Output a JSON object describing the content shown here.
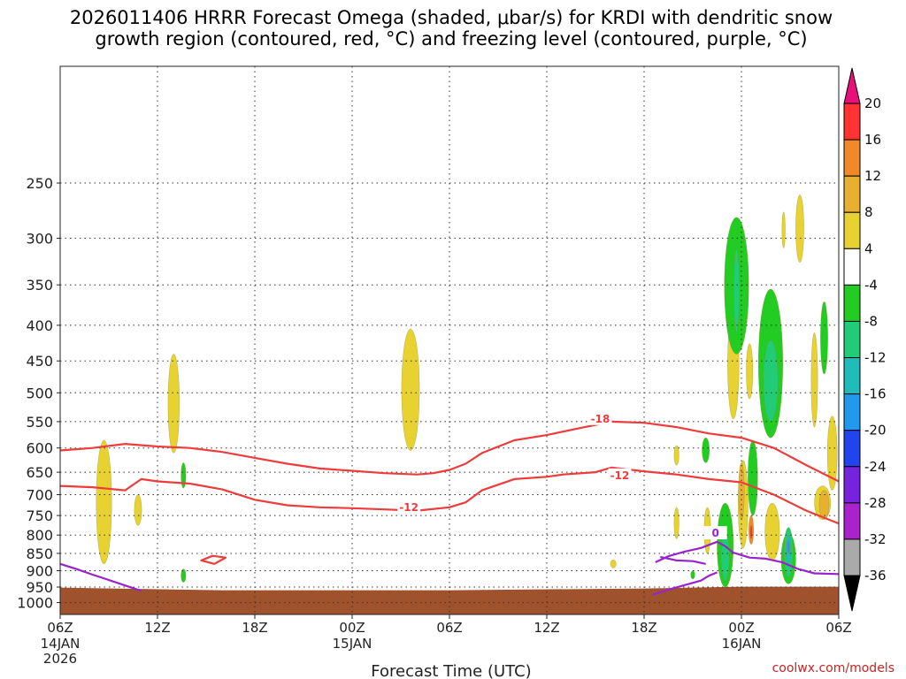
{
  "chart_data": {
    "type": "contour",
    "title_line1": "2026011406 HRRR Forecast Omega (shaded, μbar/s) for KRDI with dendritic snow",
    "title_line2": "growth region (contoured, red, °C) and freezing level (contoured, purple, °C)",
    "xlabel": "Forecast Time (UTC)",
    "credit": "coolwx.com/models",
    "x_range_hours": [
      0,
      48
    ],
    "y_range_mb": [
      170,
      1040
    ],
    "y_scale": "log",
    "grid": "dotted",
    "x_ticks": [
      {
        "hour": 0,
        "label": "06Z",
        "date": "14JAN",
        "year": "2026"
      },
      {
        "hour": 6,
        "label": "12Z",
        "date": "",
        "year": ""
      },
      {
        "hour": 12,
        "label": "18Z",
        "date": "",
        "year": ""
      },
      {
        "hour": 18,
        "label": "00Z",
        "date": "15JAN",
        "year": ""
      },
      {
        "hour": 24,
        "label": "06Z",
        "date": "",
        "year": ""
      },
      {
        "hour": 30,
        "label": "12Z",
        "date": "",
        "year": ""
      },
      {
        "hour": 36,
        "label": "18Z",
        "date": "",
        "year": ""
      },
      {
        "hour": 42,
        "label": "00Z",
        "date": "16JAN",
        "year": ""
      },
      {
        "hour": 48,
        "label": "06Z",
        "date": "",
        "year": ""
      }
    ],
    "y_ticks": [
      250,
      300,
      350,
      400,
      450,
      500,
      550,
      600,
      650,
      700,
      750,
      800,
      850,
      900,
      950,
      1000
    ],
    "ground_mb": 960,
    "colorbar": [
      {
        "label": "20",
        "color": "#ff3333"
      },
      {
        "label": "16",
        "color": "#f08a28"
      },
      {
        "label": "12",
        "color": "#e8b030"
      },
      {
        "label": "8",
        "color": "#e8d232"
      },
      {
        "label": "4",
        "color": "#ffffff"
      },
      {
        "label": "-4",
        "color": "#22cc22"
      },
      {
        "label": "-8",
        "color": "#22cc77"
      },
      {
        "label": "-12",
        "color": "#22bbbb"
      },
      {
        "label": "-16",
        "color": "#2299ee"
      },
      {
        "label": "-20",
        "color": "#2244ee"
      },
      {
        "label": "-24",
        "color": "#7722dd"
      },
      {
        "label": "-28",
        "color": "#aa22cc"
      },
      {
        "label": "-32",
        "color": "#aaaaaa"
      },
      {
        "label": "-36",
        "color": "#000000"
      }
    ],
    "colorbar_top_color": "#e8107a",
    "contour_lines": [
      {
        "label": "-18",
        "color": "#ee3b3b",
        "label_at": {
          "h": 33.3,
          "p": 545
        },
        "points": [
          [
            0,
            605
          ],
          [
            2,
            600
          ],
          [
            4,
            592
          ],
          [
            6,
            597
          ],
          [
            8,
            600
          ],
          [
            10,
            608
          ],
          [
            12,
            620
          ],
          [
            14,
            632
          ],
          [
            16,
            642
          ],
          [
            18,
            647
          ],
          [
            20,
            652
          ],
          [
            22,
            655
          ],
          [
            23,
            652
          ],
          [
            24,
            645
          ],
          [
            25,
            632
          ],
          [
            26,
            610
          ],
          [
            28,
            585
          ],
          [
            30,
            575
          ],
          [
            32,
            562
          ],
          [
            34,
            550
          ],
          [
            36,
            552
          ],
          [
            38,
            560
          ],
          [
            40,
            572
          ],
          [
            42,
            580
          ],
          [
            44,
            600
          ],
          [
            46,
            635
          ],
          [
            48,
            670
          ]
        ]
      },
      {
        "label": "-12",
        "color": "#ee3b3b",
        "label_at": {
          "h": 21.5,
          "p": 730
        },
        "points": [
          [
            0,
            680
          ],
          [
            2,
            683
          ],
          [
            4,
            690
          ],
          [
            5,
            665
          ],
          [
            6,
            670
          ],
          [
            8,
            675
          ],
          [
            10,
            688
          ],
          [
            12,
            712
          ],
          [
            14,
            725
          ],
          [
            16,
            730
          ],
          [
            18,
            732
          ],
          [
            20,
            735
          ],
          [
            22,
            738
          ],
          [
            24,
            730
          ],
          [
            25,
            718
          ],
          [
            26,
            690
          ],
          [
            28,
            665
          ],
          [
            30,
            660
          ],
          [
            31,
            655
          ],
          [
            33,
            650
          ],
          [
            34,
            640
          ],
          [
            36,
            648
          ],
          [
            38,
            655
          ],
          [
            40,
            665
          ],
          [
            42,
            672
          ],
          [
            44,
            700
          ],
          [
            46,
            738
          ],
          [
            48,
            770
          ]
        ]
      },
      {
        "label": "-12",
        "color": "#ee3b3b",
        "label_at": {
          "h": 34.5,
          "p": 657
        },
        "points": []
      },
      {
        "label": "",
        "color": "#ee3b3b",
        "closed": true,
        "points": [
          [
            8.7,
            870
          ],
          [
            9.4,
            857
          ],
          [
            10.2,
            862
          ],
          [
            9.5,
            880
          ],
          [
            8.7,
            870
          ]
        ]
      },
      {
        "label": "0",
        "color": "#9922cc",
        "label_at": {
          "h": 40.4,
          "p": 795
        },
        "points": [
          [
            36.7,
            875
          ],
          [
            37.5,
            858
          ],
          [
            38.5,
            845
          ],
          [
            39.5,
            835
          ],
          [
            40.5,
            818
          ],
          [
            41,
            830
          ],
          [
            41.5,
            848
          ],
          [
            42.5,
            862
          ],
          [
            43.5,
            865
          ],
          [
            44.5,
            875
          ],
          [
            45.5,
            895
          ],
          [
            46.5,
            908
          ],
          [
            48,
            910
          ]
        ]
      },
      {
        "label": "",
        "color": "#9922cc",
        "points": [
          [
            37,
            860
          ],
          [
            38,
            870
          ],
          [
            39,
            872
          ],
          [
            39.8,
            880
          ]
        ]
      },
      {
        "label": "",
        "color": "#9922cc",
        "points": [
          [
            36.5,
            975
          ],
          [
            37.5,
            958
          ],
          [
            38.5,
            944
          ],
          [
            39.5,
            930
          ],
          [
            40,
            915
          ],
          [
            40.5,
            905
          ]
        ]
      },
      {
        "label": "",
        "color": "#9922cc",
        "points": [
          [
            0,
            880
          ],
          [
            1,
            895
          ],
          [
            2,
            912
          ],
          [
            3,
            928
          ],
          [
            4,
            945
          ],
          [
            5,
            962
          ]
        ]
      }
    ],
    "shaded_regions": [
      {
        "value": "4 to 8",
        "color": "#e8d232",
        "h": 2.7,
        "p_top": 585,
        "p_bot": 880,
        "width_h": 0.95
      },
      {
        "value": "4 to 8",
        "color": "#e8d232",
        "h": 4.8,
        "p_top": 700,
        "p_bot": 775,
        "width_h": 0.45
      },
      {
        "value": "4 to 8",
        "color": "#e8d232",
        "h": 7.0,
        "p_top": 440,
        "p_bot": 610,
        "width_h": 0.7
      },
      {
        "value": "4 to 8",
        "color": "#e8d232",
        "h": 21.6,
        "p_top": 405,
        "p_bot": 605,
        "width_h": 1.1
      },
      {
        "value": "4 to 8",
        "color": "#e8d232",
        "h": 34.1,
        "p_top": 868,
        "p_bot": 892,
        "width_h": 0.35
      },
      {
        "value": "4 to 8",
        "color": "#e8d232",
        "h": 38.0,
        "p_top": 595,
        "p_bot": 635,
        "width_h": 0.3
      },
      {
        "value": "4 to 8",
        "color": "#e8d232",
        "h": 38.0,
        "p_top": 730,
        "p_bot": 810,
        "width_h": 0.3
      },
      {
        "value": "4 to 8",
        "color": "#e8d232",
        "h": 39.9,
        "p_top": 730,
        "p_bot": 850,
        "width_h": 0.4
      },
      {
        "value": "4 to 8",
        "color": "#e8d232",
        "h": 41.5,
        "p_top": 380,
        "p_bot": 545,
        "width_h": 0.7
      },
      {
        "value": "4 to 8",
        "color": "#e8d232",
        "h": 42.5,
        "p_top": 425,
        "p_bot": 510,
        "width_h": 0.4
      },
      {
        "value": "4 to 8",
        "color": "#e8d232",
        "h": 42.1,
        "p_top": 625,
        "p_bot": 835,
        "width_h": 0.6
      },
      {
        "value": "4 to 8",
        "color": "#e8d232",
        "h": 43.9,
        "p_top": 720,
        "p_bot": 870,
        "width_h": 0.9
      },
      {
        "value": "4 to 8",
        "color": "#e8d232",
        "h": 45.6,
        "p_top": 260,
        "p_bot": 325,
        "width_h": 0.5
      },
      {
        "value": "4 to 8",
        "color": "#e8d232",
        "h": 44.6,
        "p_top": 275,
        "p_bot": 310,
        "width_h": 0.2
      },
      {
        "value": "4 to 8",
        "color": "#e8d232",
        "h": 46.5,
        "p_top": 410,
        "p_bot": 560,
        "width_h": 0.4
      },
      {
        "value": "4 to 8",
        "color": "#e8d232",
        "h": 47.0,
        "p_top": 680,
        "p_bot": 760,
        "width_h": 1.0
      },
      {
        "value": "4 to 8",
        "color": "#e8d232",
        "h": 47.6,
        "p_top": 540,
        "p_bot": 690,
        "width_h": 0.6
      },
      {
        "value": "8 to 12",
        "color": "#e8b030",
        "h": 42.0,
        "p_top": 630,
        "p_bot": 760,
        "width_h": 0.35
      },
      {
        "value": "8 to 12",
        "color": "#e8b030",
        "h": 47.1,
        "p_top": 690,
        "p_bot": 760,
        "width_h": 0.6
      },
      {
        "value": "12 to 16",
        "color": "#f08a28",
        "h": 42.6,
        "p_top": 750,
        "p_bot": 825,
        "width_h": 0.3
      },
      {
        "value": "16 to 20",
        "color": "#ff3333",
        "h": 42.6,
        "p_top": 775,
        "p_bot": 810,
        "width_h": 0.12
      },
      {
        "value": "-8 to -4",
        "color": "#22cc22",
        "h": 7.6,
        "p_top": 630,
        "p_bot": 685,
        "width_h": 0.3
      },
      {
        "value": "-8 to -4",
        "color": "#22cc22",
        "h": 7.6,
        "p_top": 895,
        "p_bot": 935,
        "width_h": 0.3
      },
      {
        "value": "-8 to -4",
        "color": "#22cc22",
        "h": 39.0,
        "p_top": 900,
        "p_bot": 925,
        "width_h": 0.25
      },
      {
        "value": "-8 to -4",
        "color": "#22cc22",
        "h": 39.8,
        "p_top": 580,
        "p_bot": 630,
        "width_h": 0.45
      },
      {
        "value": "-8 to -4",
        "color": "#22cc22",
        "h": 41.0,
        "p_top": 720,
        "p_bot": 950,
        "width_h": 1.0
      },
      {
        "value": "-8 to -4",
        "color": "#22cc22",
        "h": 42.7,
        "p_top": 585,
        "p_bot": 750,
        "width_h": 0.6
      },
      {
        "value": "-8 to -4",
        "color": "#22cc22",
        "h": 41.7,
        "p_top": 280,
        "p_bot": 440,
        "width_h": 1.5
      },
      {
        "value": "-8 to -4",
        "color": "#22cc22",
        "h": 43.8,
        "p_top": 355,
        "p_bot": 580,
        "width_h": 1.5
      },
      {
        "value": "-8 to -4",
        "color": "#22cc22",
        "h": 44.9,
        "p_top": 795,
        "p_bot": 940,
        "width_h": 0.9
      },
      {
        "value": "-8 to -4",
        "color": "#22cc22",
        "h": 47.1,
        "p_top": 370,
        "p_bot": 470,
        "width_h": 0.45
      },
      {
        "value": "-12 to -8",
        "color": "#22cc77",
        "h": 43.8,
        "p_top": 420,
        "p_bot": 550,
        "width_h": 0.9
      },
      {
        "value": "-12 to -8",
        "color": "#22cc77",
        "h": 41.7,
        "p_top": 310,
        "p_bot": 410,
        "width_h": 0.35
      },
      {
        "value": "-12 to -8",
        "color": "#22cc77",
        "h": 41.0,
        "p_top": 790,
        "p_bot": 930,
        "width_h": 0.5
      },
      {
        "value": "-12 to -8",
        "color": "#22cc77",
        "h": 44.9,
        "p_top": 780,
        "p_bot": 920,
        "width_h": 0.55
      },
      {
        "value": "-16 to -12",
        "color": "#22bbbb",
        "h": 44.9,
        "p_top": 800,
        "p_bot": 880,
        "width_h": 0.32
      },
      {
        "value": "-20 to -16",
        "color": "#2299ee",
        "h": 44.9,
        "p_top": 815,
        "p_bot": 850,
        "width_h": 0.15
      }
    ]
  }
}
